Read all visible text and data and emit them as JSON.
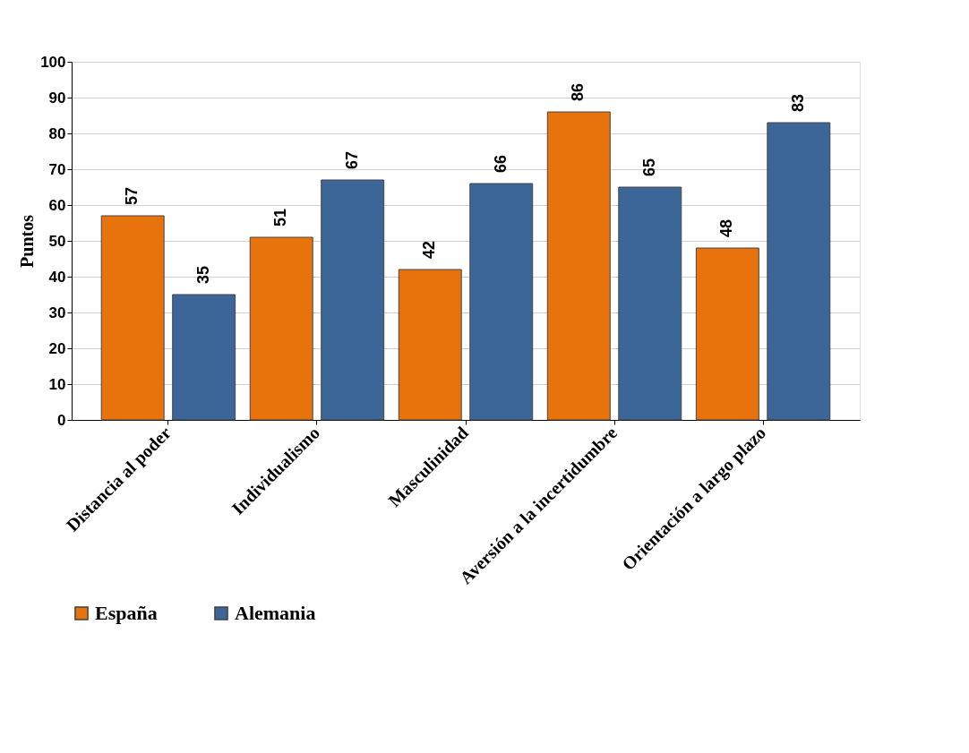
{
  "chart_data": {
    "type": "bar",
    "ylabel": "Puntos",
    "categories": [
      "Distancia al poder",
      "Individualismo",
      "Masculinidad",
      "Aversión a la incertidumbre",
      "Orientación a largo plazo"
    ],
    "series": [
      {
        "name": "España",
        "color": "#e8720c",
        "values": [
          57,
          51,
          42,
          86,
          48
        ]
      },
      {
        "name": "Alemania",
        "color": "#3c6697",
        "values": [
          35,
          67,
          66,
          65,
          83
        ]
      }
    ],
    "ylim": [
      0,
      100
    ],
    "yticks": [
      0,
      10,
      20,
      30,
      40,
      50,
      60,
      70,
      80,
      90,
      100
    ],
    "grid": "y",
    "legend": "bottom",
    "data_labels": true
  }
}
